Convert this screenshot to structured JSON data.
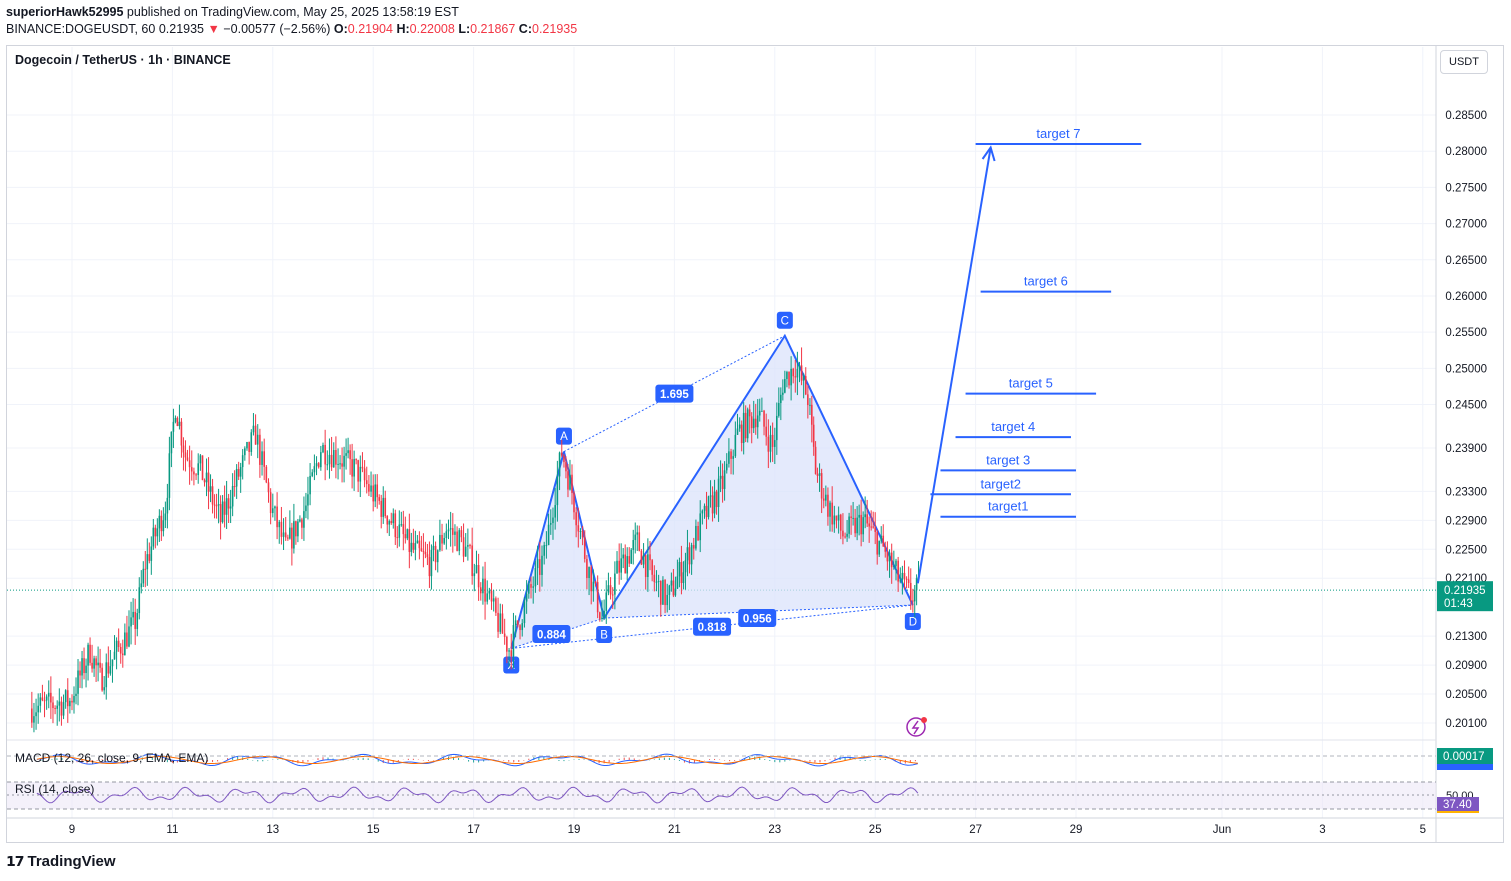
{
  "header": {
    "publisher": "superiorHawk52995",
    "published_text": "published on TradingView.com, May 25, 2025 13:58:19 EST",
    "symbol_line": "BINANCE:DOGEUSDT, 60",
    "last": "0.21935",
    "change": "−0.00577 (−2.56%)",
    "o_label": "O:",
    "o": "0.21904",
    "h_label": "H:",
    "h": "0.22008",
    "l_label": "L:",
    "l": "0.21867",
    "c_label": "C:",
    "c": "0.21935"
  },
  "pane_title": "Dogecoin / TetherUS · 1h · BINANCE",
  "currency": "USDT",
  "footer_brand": "TradingView",
  "macd_label": "MACD (12, 26, close, 9, EMA, EMA)",
  "rsi_label": "RSI (14, close)",
  "macd_value": "0.00017",
  "rsi_level": "50.00",
  "rsi_value": "37.40",
  "price_label": "0.21935",
  "countdown": "01:43",
  "colors": {
    "up": "#089981",
    "down": "#f23645",
    "pattern": "#2962ff",
    "pattern_fill": "#dbe3fb",
    "macd": "#2962ff",
    "signal": "#ff6d00",
    "rsi": "#7e57c2"
  },
  "chart_data": {
    "type": "candlestick",
    "x_ticks": [
      "9",
      "11",
      "13",
      "15",
      "17",
      "19",
      "21",
      "23",
      "25",
      "27",
      "29",
      "Jun",
      "3",
      "5"
    ],
    "y_ticks": [
      "0.28500",
      "0.28000",
      "0.27500",
      "0.27000",
      "0.26500",
      "0.26000",
      "0.25500",
      "0.25000",
      "0.24500",
      "0.23900",
      "0.23300",
      "0.22900",
      "0.22500",
      "0.22100",
      "0.21300",
      "0.20900",
      "0.20500",
      "0.20100"
    ],
    "y_range": [
      0.198,
      0.29
    ],
    "last_price": 0.21935,
    "price_path": [
      [
        8.2,
        0.203
      ],
      [
        9.0,
        0.204
      ],
      [
        9.4,
        0.211
      ],
      [
        9.6,
        0.207
      ],
      [
        10.3,
        0.215
      ],
      [
        10.5,
        0.223
      ],
      [
        10.9,
        0.231
      ],
      [
        11.1,
        0.245
      ],
      [
        11.3,
        0.238
      ],
      [
        11.6,
        0.236
      ],
      [
        12.0,
        0.229
      ],
      [
        12.4,
        0.236
      ],
      [
        12.7,
        0.241
      ],
      [
        13.0,
        0.231
      ],
      [
        13.3,
        0.225
      ],
      [
        13.7,
        0.231
      ],
      [
        14.0,
        0.239
      ],
      [
        14.3,
        0.238
      ],
      [
        14.7,
        0.236
      ],
      [
        15.0,
        0.233
      ],
      [
        15.4,
        0.229
      ],
      [
        15.8,
        0.225
      ],
      [
        16.2,
        0.223
      ],
      [
        16.5,
        0.228
      ],
      [
        16.8,
        0.226
      ],
      [
        17.1,
        0.222
      ],
      [
        17.4,
        0.217
      ],
      [
        17.75,
        0.2113
      ],
      [
        18.1,
        0.218
      ],
      [
        18.45,
        0.224
      ],
      [
        18.8,
        0.2385
      ],
      [
        19.0,
        0.233
      ],
      [
        19.3,
        0.223
      ],
      [
        19.6,
        0.2155
      ],
      [
        19.9,
        0.222
      ],
      [
        20.3,
        0.226
      ],
      [
        20.6,
        0.221
      ],
      [
        20.9,
        0.218
      ],
      [
        21.3,
        0.224
      ],
      [
        21.6,
        0.229
      ],
      [
        22.0,
        0.234
      ],
      [
        22.3,
        0.241
      ],
      [
        22.7,
        0.244
      ],
      [
        23.0,
        0.239
      ],
      [
        23.2,
        0.248
      ],
      [
        23.45,
        0.2505
      ],
      [
        23.7,
        0.246
      ],
      [
        23.85,
        0.236
      ],
      [
        24.1,
        0.231
      ],
      [
        24.4,
        0.227
      ],
      [
        24.8,
        0.229
      ],
      [
        25.2,
        0.225
      ],
      [
        25.5,
        0.221
      ],
      [
        25.75,
        0.2185
      ],
      [
        25.9,
        0.2194
      ]
    ],
    "pattern": {
      "points": [
        {
          "label": "X",
          "x": 17.75,
          "y": 0.2113
        },
        {
          "label": "A",
          "x": 18.8,
          "y": 0.2385
        },
        {
          "label": "B",
          "x": 19.6,
          "y": 0.2155
        },
        {
          "label": "C",
          "x": 23.2,
          "y": 0.2545
        },
        {
          "label": "D",
          "x": 25.75,
          "y": 0.2173
        }
      ],
      "ratios": [
        {
          "label": "0.884",
          "x": 18.55,
          "y": 0.2133
        },
        {
          "label": "1.695",
          "x": 21.0,
          "y": 0.2465
        },
        {
          "label": "0.818",
          "x": 21.75,
          "y": 0.2143
        },
        {
          "label": "0.956",
          "x": 22.65,
          "y": 0.2155
        }
      ]
    },
    "projection": {
      "from": [
        25.85,
        0.2203
      ],
      "to": [
        27.3,
        0.2805
      ]
    },
    "targets": [
      {
        "label": "target1",
        "y": 0.2295,
        "x0": 26.3,
        "x1": 29.0
      },
      {
        "label": "target2",
        "y": 0.2326,
        "x0": 26.1,
        "x1": 28.9
      },
      {
        "label": "target 3",
        "y": 0.2359,
        "x0": 26.3,
        "x1": 29.0
      },
      {
        "label": "target 4",
        "y": 0.2405,
        "x0": 26.6,
        "x1": 28.9
      },
      {
        "label": "target 5",
        "y": 0.2465,
        "x0": 26.8,
        "x1": 29.4
      },
      {
        "label": "target 6",
        "y": 0.2606,
        "x0": 27.1,
        "x1": 29.7
      },
      {
        "label": "target 7",
        "y": 0.281,
        "x0": 27.0,
        "x1": 30.3
      }
    ]
  }
}
